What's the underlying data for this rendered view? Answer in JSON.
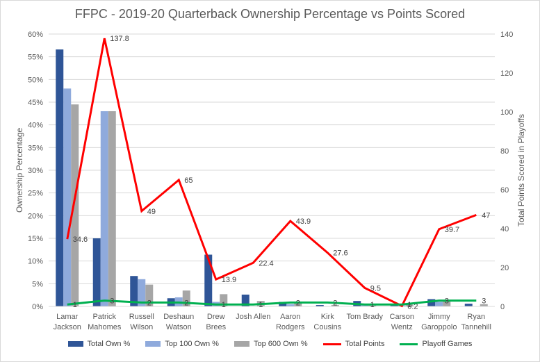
{
  "chart_data": {
    "type": "bar",
    "title": "FFPC - 2019-20 Quarterback Ownership Percentage vs Points Scored",
    "ylabel": "Ownership Percentage",
    "y2label": "Total Points Scored in Playoffs",
    "ylim": [
      0,
      60
    ],
    "y2lim": [
      0,
      140
    ],
    "yticks": [
      "0%",
      "5%",
      "10%",
      "15%",
      "20%",
      "25%",
      "30%",
      "35%",
      "40%",
      "45%",
      "50%",
      "55%",
      "60%"
    ],
    "y2ticks": [
      "0",
      "20",
      "40",
      "60",
      "80",
      "100",
      "120",
      "140"
    ],
    "categories": [
      [
        "Lamar",
        "Jackson"
      ],
      [
        "Patrick",
        "Mahomes"
      ],
      [
        "Russell",
        "Wilson"
      ],
      [
        "Deshaun",
        "Watson"
      ],
      [
        "Drew",
        "Brees"
      ],
      [
        "Josh Allen"
      ],
      [
        "Aaron",
        "Rodgers"
      ],
      [
        "Kirk",
        "Cousins"
      ],
      [
        "Tom Brady"
      ],
      [
        "Carson",
        "Wentz"
      ],
      [
        "Jimmy",
        "Garoppolo"
      ],
      [
        "Ryan",
        "Tannehill"
      ]
    ],
    "bar_series": [
      {
        "name": "Total Own %",
        "color": "#2f5597",
        "values": [
          56.6,
          15.0,
          6.7,
          1.8,
          11.4,
          2.6,
          1.0,
          0.3,
          1.2,
          0.5,
          1.6,
          0.6
        ]
      },
      {
        "name": "Top 100 Own %",
        "color": "#8faadc",
        "values": [
          48.0,
          43.0,
          6.0,
          2.0,
          1.0,
          0,
          0.5,
          0,
          0.4,
          0.2,
          1.0,
          0
        ]
      },
      {
        "name": "Top 600 Own %",
        "color": "#a6a6a6",
        "values": [
          44.5,
          43.0,
          4.8,
          3.5,
          2.7,
          1.2,
          0.9,
          0.3,
          0.6,
          0.4,
          1.3,
          0.5
        ]
      }
    ],
    "line_series": [
      {
        "name": "Total Points",
        "color": "#ff0000",
        "values": [
          34.6,
          137.8,
          49,
          65,
          13.9,
          22.4,
          43.9,
          27.6,
          9.5,
          0.2,
          39.7,
          47
        ],
        "labels": [
          "34.6",
          "137.8",
          "49",
          "65",
          "13.9",
          "22.4",
          "43.9",
          "27.6",
          "9.5",
          "0.2",
          "39.7",
          "47"
        ]
      },
      {
        "name": "Playoff Games",
        "color": "#00b050",
        "values": [
          1,
          3,
          2,
          2,
          1,
          1,
          2,
          2,
          1,
          1,
          3,
          3
        ],
        "labels": [
          "1",
          "3",
          "2",
          "2",
          "1",
          "1",
          "2",
          "2",
          "1",
          "1",
          "3",
          "3"
        ]
      }
    ],
    "legend_position": "bottom"
  }
}
